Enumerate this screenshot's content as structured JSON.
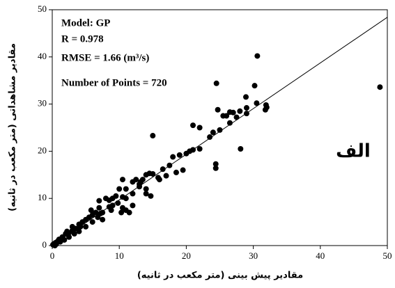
{
  "chart_data": {
    "type": "scatter",
    "x_label": "مقادیر پیش بینی (متر مکعب در ثانیه)",
    "y_label": "مقادیر مشاهداتی (متر مکعب در ثانیه)",
    "annotations": [
      "Model: GP",
      "R = 0.978",
      "RMSE = 1.66 (m³/s)",
      "Number of Points = 720"
    ],
    "panel_label": "الف",
    "xlim": [
      0,
      50
    ],
    "ylim": [
      0,
      50
    ],
    "xticks": [
      0,
      10,
      20,
      30,
      40,
      50
    ],
    "yticks": [
      0,
      10,
      20,
      30,
      40,
      50
    ],
    "grid": false,
    "color": "#000000",
    "fit_line": {
      "x": [
        0,
        50
      ],
      "y": [
        0,
        48.4
      ]
    },
    "x": [
      48.9,
      30.6,
      24.5,
      30.2,
      28.9,
      31.9,
      31.8,
      24.4,
      24.4,
      28.1,
      15,
      22,
      21,
      25,
      24.7,
      26,
      27,
      28,
      27.5,
      29,
      29,
      25.5,
      26.5,
      23.5,
      24,
      22,
      20,
      19,
      20.5,
      21,
      18,
      18.5,
      19.5,
      17.5,
      17,
      16.5,
      15,
      14,
      13.5,
      13.2,
      12.5,
      14.5,
      15.8,
      14,
      13,
      12,
      11,
      10.5,
      10,
      10.5,
      11,
      9.8,
      10.5,
      11,
      10.3,
      11.5,
      14,
      14.7,
      12,
      9,
      8.5,
      8,
      9,
      8.8,
      7.5,
      7,
      7,
      7.5,
      6.5,
      6,
      5.5,
      6,
      5,
      4.5,
      5,
      4,
      3.5,
      4,
      3,
      3,
      2.5,
      2,
      2.5,
      1.5,
      1.8,
      1,
      1.2,
      0.8,
      0.5,
      0.6,
      0.3,
      0.2,
      0.1,
      0.4,
      3.3,
      2.2,
      4.2,
      5.8,
      6.8,
      7.2,
      13,
      12,
      16,
      8.5,
      9.5,
      30.5,
      32,
      26.5
    ],
    "values": [
      33.6,
      40.2,
      34.4,
      33.9,
      31.5,
      29.8,
      28.8,
      17.3,
      16.4,
      20.5,
      23.3,
      25,
      25.5,
      24.5,
      28.8,
      27.5,
      28.2,
      28.5,
      27.2,
      29.2,
      28,
      27.5,
      26,
      23,
      24,
      20.5,
      19.5,
      19.2,
      20,
      20.3,
      18.8,
      15.5,
      16,
      17,
      14.8,
      16.2,
      15.2,
      15,
      14,
      13.5,
      14,
      15.3,
      14.4,
      12,
      12.5,
      11,
      12,
      14,
      12,
      10.3,
      10,
      9,
      8,
      7.5,
      7,
      7,
      11,
      10.5,
      8.5,
      8.5,
      9.6,
      10,
      10,
      7.5,
      7,
      8,
      9.5,
      5.5,
      7,
      6.5,
      6,
      5,
      5.5,
      5,
      4,
      4.5,
      3.6,
      3,
      3.2,
      4,
      2.7,
      2.5,
      1.8,
      1.8,
      1.2,
      1.3,
      0.8,
      0.9,
      0.6,
      0.3,
      0.4,
      0.1,
      0.2,
      0,
      2.5,
      3,
      4,
      7.5,
      6,
      6.8,
      13,
      13.5,
      14,
      8.2,
      10.5,
      30.2,
      29.3,
      28.3
    ]
  }
}
